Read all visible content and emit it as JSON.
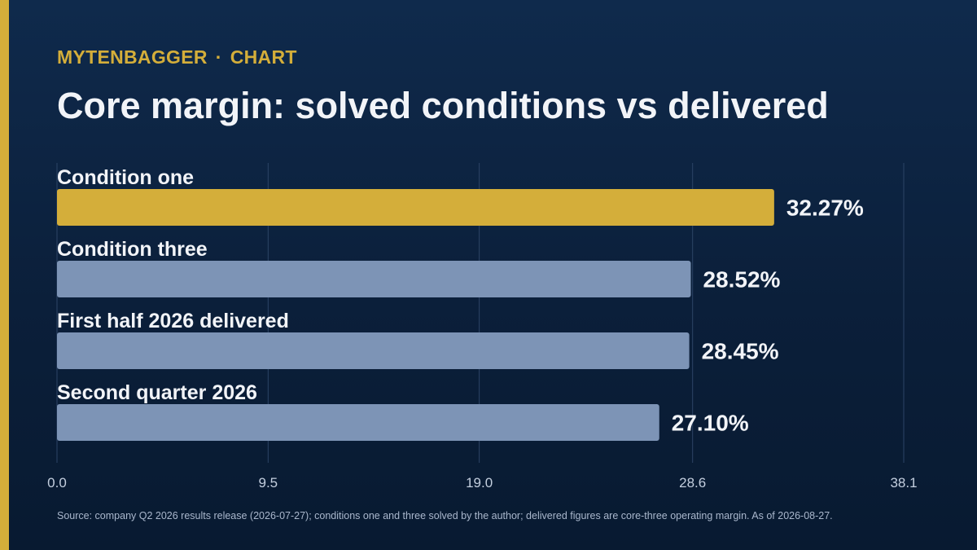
{
  "brand": {
    "name": "MYTENBAGGER",
    "separator": "·",
    "section": "CHART"
  },
  "title": "Core margin: solved conditions vs delivered",
  "footnote": "Source: company Q2 2026 results release (2026-07-27); conditions one and three solved by the author; delivered figures are core-three operating margin. As of 2026-08-27.",
  "colors": {
    "accent": "#d4ae3a",
    "bar_highlight": "#d4ae3a",
    "bar_default": "#7d94b6",
    "gridline": "#2c4466",
    "text": "#f2f4f8",
    "tick_text": "#c4cfdf"
  },
  "chart_data": {
    "type": "bar",
    "orientation": "horizontal",
    "categories": [
      "Condition one",
      "Condition three",
      "First half 2026 delivered",
      "Second quarter 2026"
    ],
    "values": [
      32.27,
      28.52,
      28.45,
      27.1
    ],
    "value_labels": [
      "32.27%",
      "28.52%",
      "28.45%",
      "27.10%"
    ],
    "highlight_index": 0,
    "xlim": [
      0,
      38.1
    ],
    "xticks": [
      0.0,
      9.5,
      19.0,
      28.6,
      38.1
    ],
    "xtick_labels": [
      "0.0",
      "9.5",
      "19.0",
      "28.6",
      "38.1"
    ],
    "grid": true
  }
}
